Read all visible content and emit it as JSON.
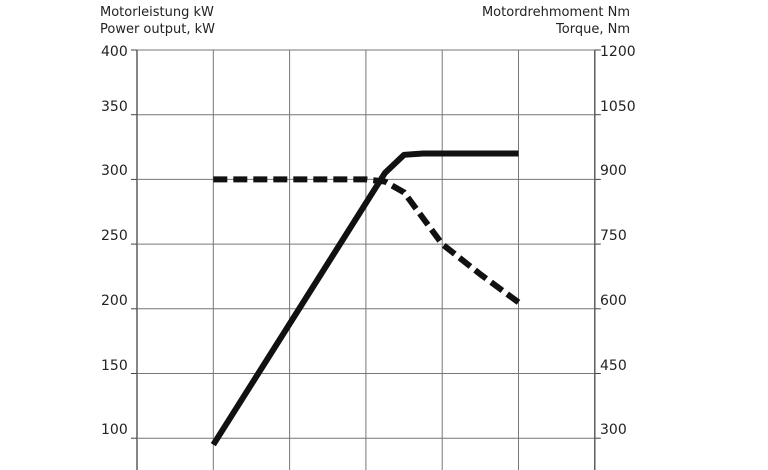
{
  "chart_data": {
    "type": "line",
    "title": "",
    "ylabel_left": [
      "Motorleistung kW",
      "Power output, kW"
    ],
    "ylabel_right": [
      "Motordrehmoment Nm",
      "Torque, Nm"
    ],
    "xlabel": "",
    "left_ticks": [
      "400",
      "350",
      "300",
      "250",
      "200",
      "150",
      "100"
    ],
    "right_ticks": [
      "1200",
      "1050",
      "900",
      "750",
      "600",
      "450",
      "300"
    ],
    "ylim_left": [
      75,
      400
    ],
    "ylim_right": [
      225,
      1200
    ],
    "xlim": [
      0,
      6
    ],
    "grid": true,
    "series": [
      {
        "name": "Power output, kW",
        "axis": "left",
        "style": "solid",
        "x": [
          1,
          3.25,
          3.5,
          3.75,
          5
        ],
        "y": [
          95,
          305,
          319,
          320,
          320
        ]
      },
      {
        "name": "Torque, Nm",
        "axis": "right",
        "style": "dashed",
        "x": [
          1,
          3,
          3.25,
          3.5,
          3.75,
          4,
          4.5,
          5
        ],
        "y": [
          900,
          900,
          895,
          870,
          810,
          750,
          680,
          615
        ]
      }
    ]
  }
}
